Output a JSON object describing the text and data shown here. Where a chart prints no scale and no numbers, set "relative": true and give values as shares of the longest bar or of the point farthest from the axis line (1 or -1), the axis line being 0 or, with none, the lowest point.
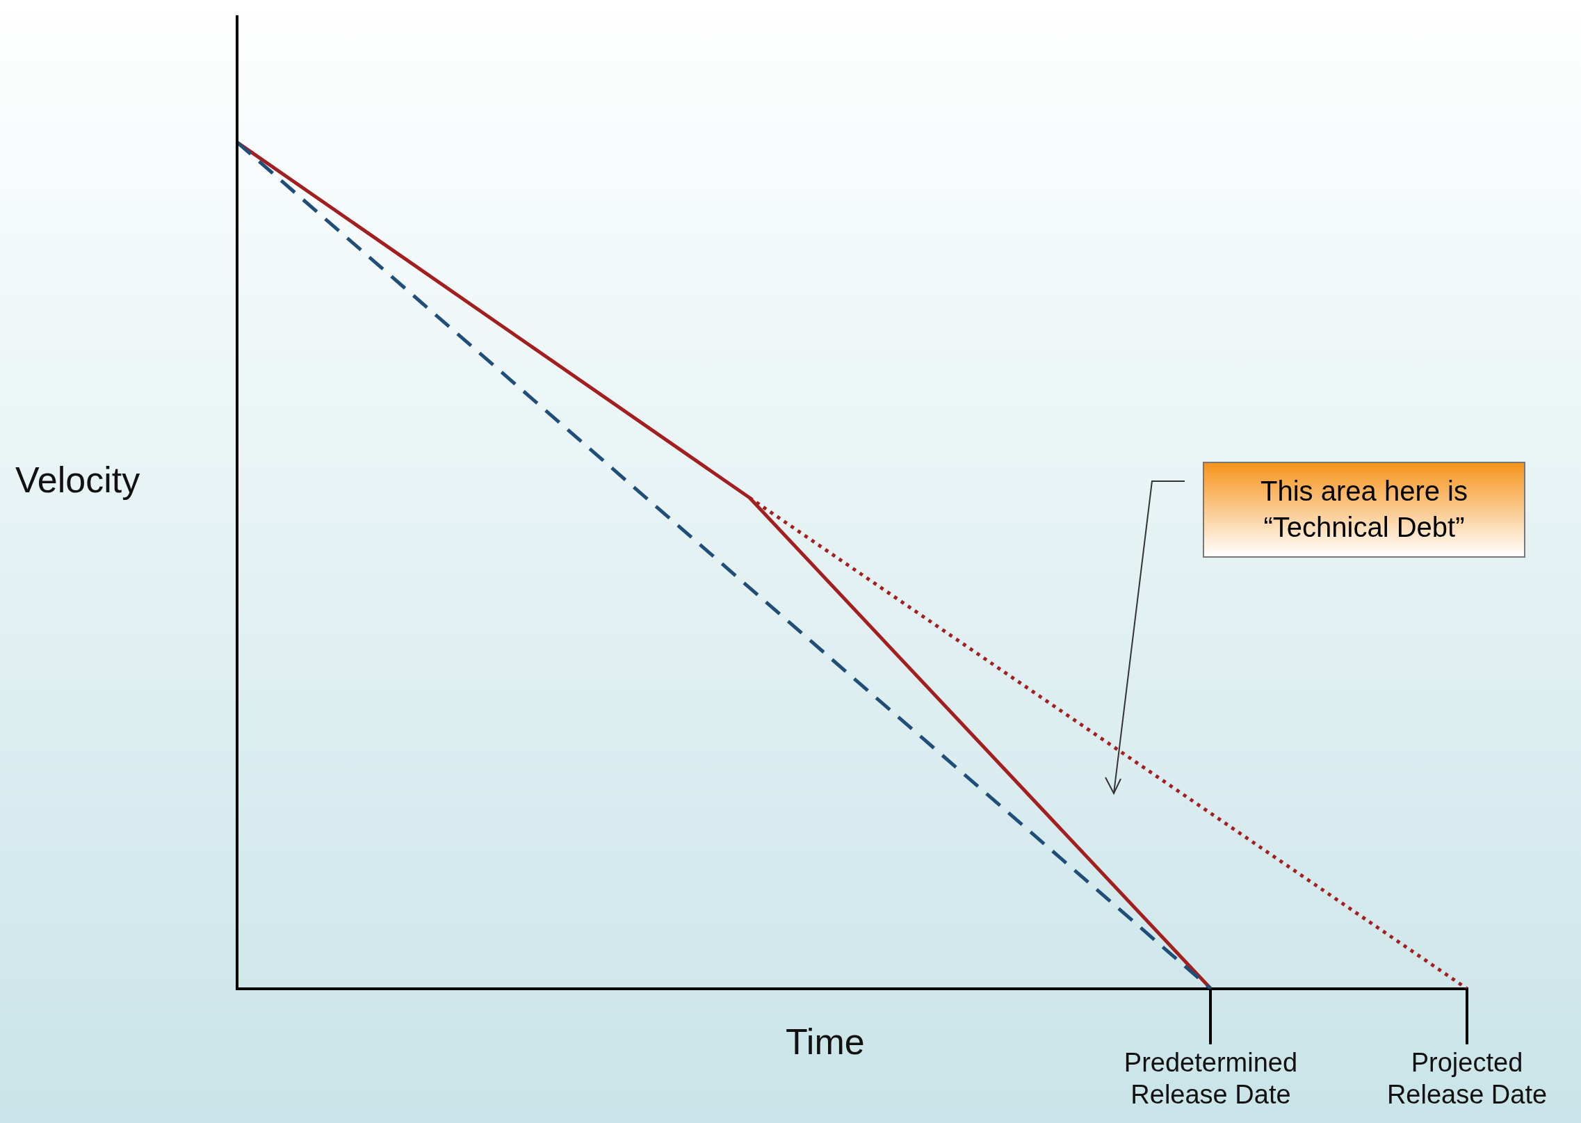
{
  "chart_data": {
    "type": "line",
    "relative": true,
    "xlabel": "Time",
    "ylabel": "Velocity",
    "categories": [
      null,
      null,
      null,
      null,
      null,
      null,
      null,
      null,
      null,
      null,
      null,
      null,
      null,
      null,
      null,
      null,
      null,
      null,
      null,
      "Predetermined Release Date",
      null,
      null,
      null,
      null,
      "Projected Release Date"
    ],
    "series": [
      {
        "color": "#1f4e79",
        "line_style": "dashed",
        "values": [
          1,
          null,
          null,
          null,
          null,
          null,
          null,
          null,
          null,
          null,
          null,
          null,
          null,
          null,
          null,
          null,
          null,
          null,
          null,
          0,
          null,
          null,
          null,
          null,
          null
        ]
      },
      {
        "color": "#a31f1f",
        "line_style": "solid",
        "values": [
          1,
          null,
          null,
          null,
          null,
          null,
          null,
          null,
          null,
          null,
          0.58,
          null,
          null,
          null,
          null,
          null,
          null,
          null,
          null,
          0,
          null,
          null,
          null,
          null,
          null
        ]
      },
      {
        "color": "#a31f1f",
        "line_style": "dotted",
        "values": [
          null,
          null,
          null,
          null,
          null,
          null,
          null,
          null,
          null,
          null,
          0.58,
          null,
          null,
          null,
          null,
          null,
          null,
          null,
          null,
          null,
          null,
          null,
          null,
          null,
          0
        ]
      }
    ],
    "annotations": [
      "This area here is “Technical Debt”"
    ],
    "marker": "none",
    "grid": false,
    "legend": false,
    "tick_labels": "x"
  }
}
